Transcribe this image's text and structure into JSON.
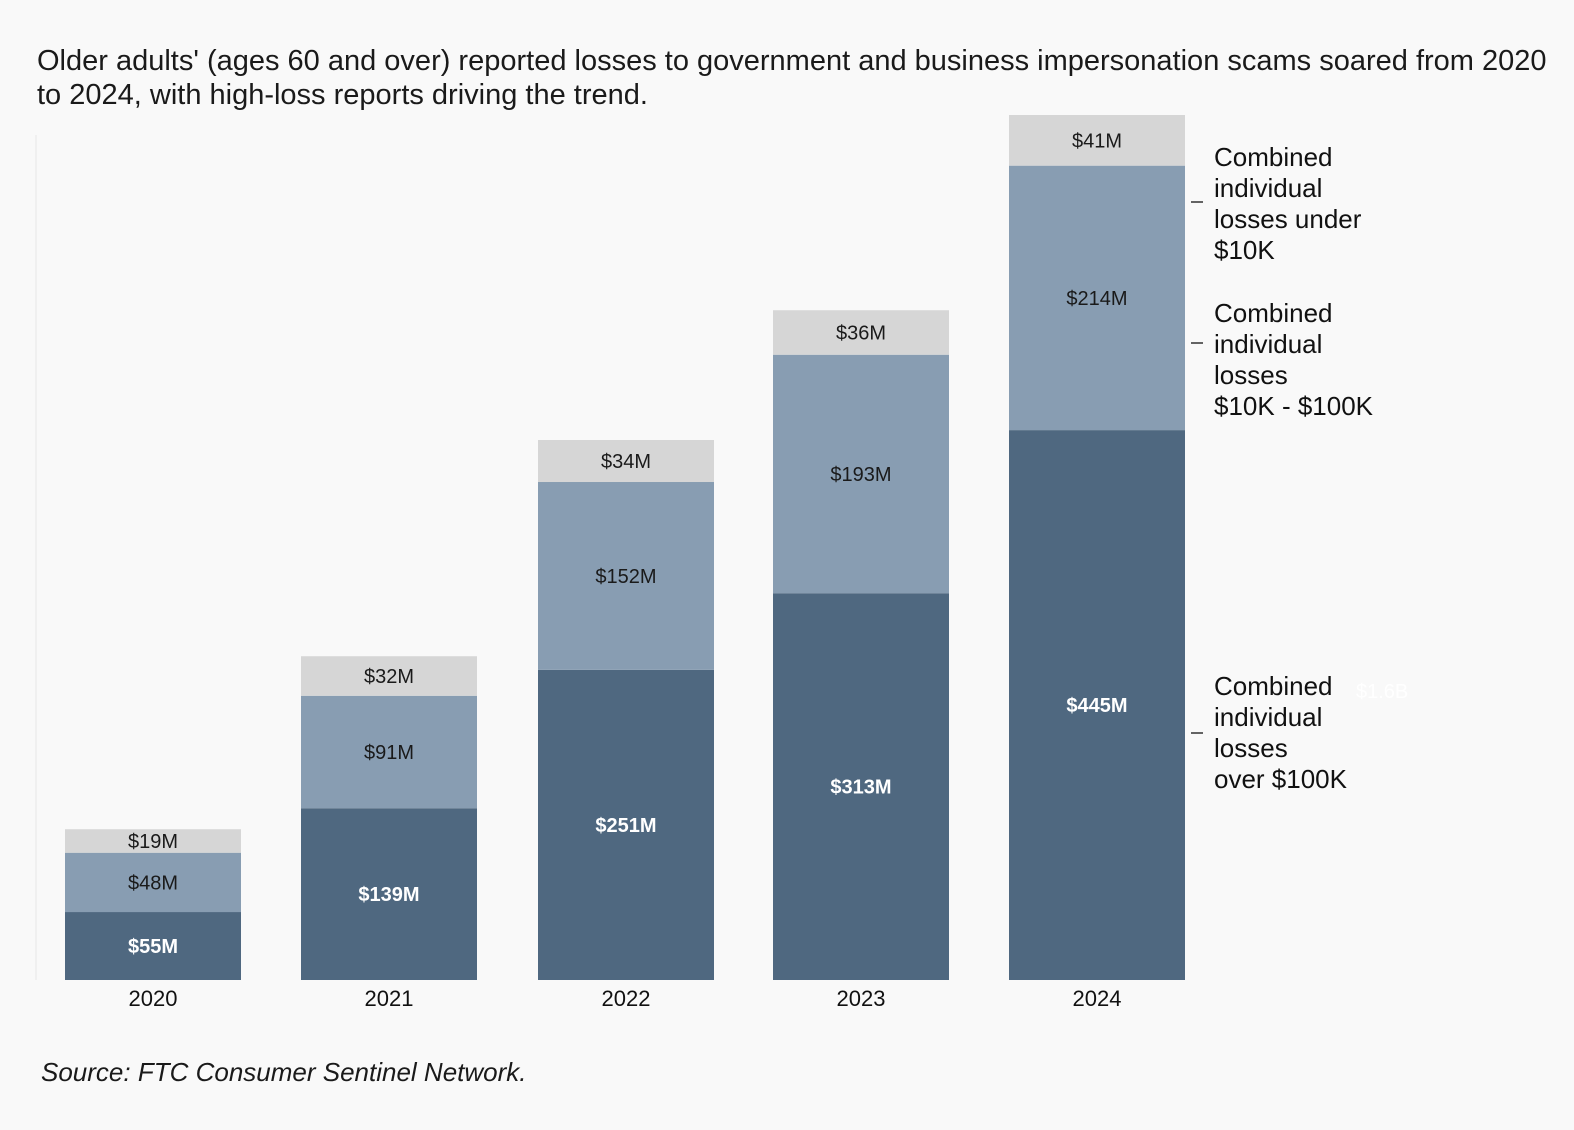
{
  "title": "Older adults' (ages 60 and over) reported losses to government and business impersonation scams soared from 2020 to 2024, with high-loss reports driving the trend.",
  "source": "Source: FTC Consumer Sentinel Network.",
  "chart_data": {
    "type": "bar",
    "stacked": true,
    "unit": "$M",
    "categories": [
      "2020",
      "2021",
      "2022",
      "2023",
      "2024"
    ],
    "series": [
      {
        "name": "Combined individual losses over $100K",
        "legend_lines": [
          "Combined",
          "individual",
          "losses",
          "over $100K"
        ],
        "color": "#4f6880",
        "label_color": "#ffffff",
        "label_bold": true,
        "values": [
          55,
          139,
          251,
          313,
          445
        ],
        "labels": [
          "$55M",
          "$139M",
          "$251M",
          "$313M",
          "$445M"
        ]
      },
      {
        "name": "Combined individual losses $10K - $100K",
        "legend_lines": [
          "Combined",
          "individual",
          "losses",
          "$10K - $100K"
        ],
        "color": "#889db2",
        "label_color": "#1a1a1a",
        "label_bold": false,
        "values": [
          48,
          91,
          152,
          193,
          214
        ],
        "labels": [
          "$48M",
          "$91M",
          "$152M",
          "$193M",
          "$214M"
        ]
      },
      {
        "name": "Combined individual losses under $10K",
        "legend_lines": [
          "Combined",
          "individual",
          "losses under",
          "$10K"
        ],
        "color": "#d6d6d6",
        "label_color": "#1a1a1a",
        "label_bold": false,
        "values": [
          19,
          32,
          34,
          36,
          41
        ],
        "labels": [
          "$19M",
          "$32M",
          "$34M",
          "$36M",
          "$41M"
        ]
      }
    ],
    "annotations": [
      {
        "text": "$1.6B",
        "color": "#ffffff"
      }
    ],
    "ylim": [
      0,
      700
    ]
  }
}
